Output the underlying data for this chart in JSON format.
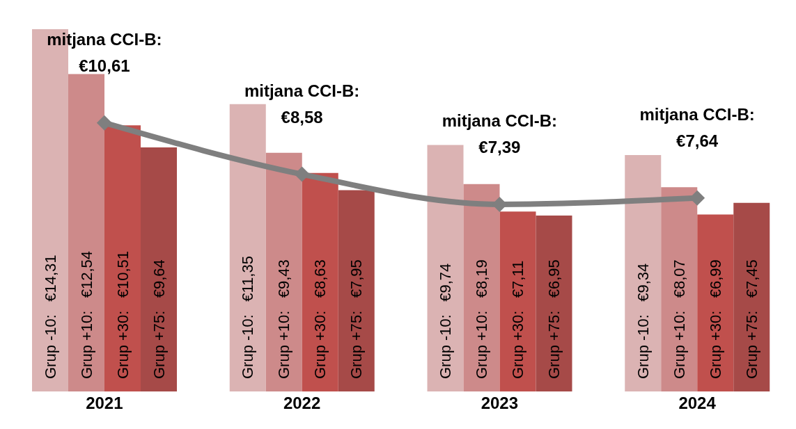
{
  "chart_data": {
    "type": "bar",
    "categories": [
      "2021",
      "2022",
      "2023",
      "2024"
    ],
    "series": [
      {
        "color": "#dbb3b3",
        "values": [
          14.31,
          11.35,
          9.74,
          9.34
        ],
        "value_labels": [
          "Grup -10:   €14,31",
          "Grup -10:   €11,35",
          "Grup -10:   €9,74",
          "Grup -10:   €9,34"
        ]
      },
      {
        "color": "#cd8a8a",
        "values": [
          12.54,
          9.43,
          8.19,
          8.07
        ],
        "value_labels": [
          "Grup +10:   €12,54",
          "Grup +10:   €9,43",
          "Grup +10:   €8,19",
          "Grup +10:   €8,07"
        ]
      },
      {
        "color": "#c0504d",
        "values": [
          10.51,
          8.63,
          7.11,
          6.99
        ],
        "value_labels": [
          "Grup +30:   €10,51",
          "Grup +30:   €8,63",
          "Grup +30:   €7,11",
          "Grup +30:   €6,99"
        ]
      },
      {
        "color": "#a64a48",
        "values": [
          9.64,
          7.95,
          6.95,
          7.45
        ],
        "value_labels": [
          "Grup +75:   €9,64",
          "Grup +75:   €7,95",
          "Grup +75:   €6,95",
          "Grup +75:   €7,45"
        ]
      },
      {
        "type": "line",
        "color": "#7f7f7f",
        "values": [
          10.61,
          8.58,
          7.39,
          7.64
        ],
        "value_labels": [
          "mitjana CCI-B:\n€10,61",
          "mitjana CCI-B:\n€8,58",
          "mitjana CCI-B:\n€7,39",
          "mitjana CCI-B:\n€7,64"
        ]
      }
    ],
    "marker": "diamond",
    "line_style": "solid"
  }
}
